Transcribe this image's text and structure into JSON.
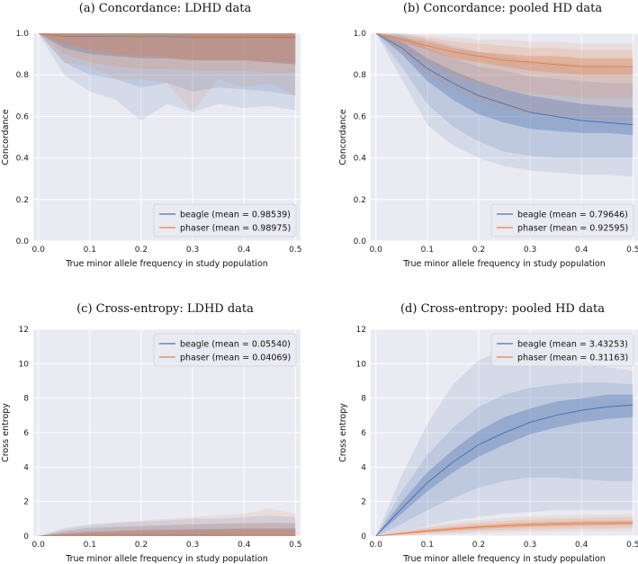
{
  "colors": {
    "beagle": "#4c72b0",
    "phaser": "#dd8452",
    "plot_bg": "#eaeaf2",
    "grid": "#ffffff"
  },
  "chart_data": [
    {
      "id": "a",
      "type": "line",
      "title": "(a) Concordance: LDHD data",
      "xlabel": "True minor allele frequency in study population",
      "ylabel": "Concordance",
      "xlim": [
        -0.01,
        0.51
      ],
      "ylim": [
        0.0,
        1.0
      ],
      "xticks": [
        "0.0",
        "0.1",
        "0.2",
        "0.3",
        "0.4",
        "0.5"
      ],
      "yticks": [
        "0.0",
        "0.2",
        "0.4",
        "0.6",
        "0.8",
        "1.0"
      ],
      "legend_position": "bottom-right",
      "x": [
        0.0,
        0.05,
        0.1,
        0.15,
        0.2,
        0.25,
        0.3,
        0.35,
        0.4,
        0.45,
        0.5
      ],
      "series": [
        {
          "name": "beagle",
          "legend": "beagle (mean = 0.98539)",
          "mean": [
            1.0,
            0.985,
            0.985,
            0.984,
            0.983,
            0.983,
            0.982,
            0.982,
            0.981,
            0.981,
            0.98
          ],
          "q1_low": [
            1.0,
            0.93,
            0.9,
            0.89,
            0.88,
            0.88,
            0.87,
            0.87,
            0.87,
            0.86,
            0.85
          ],
          "q1_high": [
            1.0,
            1.0,
            1.0,
            1.0,
            1.0,
            1.0,
            1.0,
            1.0,
            1.0,
            1.0,
            1.0
          ],
          "q2_low": [
            1.0,
            0.86,
            0.8,
            0.78,
            0.74,
            0.76,
            0.72,
            0.74,
            0.73,
            0.72,
            0.7
          ],
          "q2_high": [
            1.0,
            1.0,
            1.0,
            1.0,
            1.0,
            1.0,
            1.0,
            1.0,
            1.0,
            1.0,
            1.0
          ],
          "q3_low": [
            1.0,
            0.8,
            0.72,
            0.68,
            0.58,
            0.66,
            0.62,
            0.66,
            0.64,
            0.65,
            0.63
          ],
          "q3_high": [
            1.0,
            1.0,
            1.0,
            1.0,
            1.0,
            1.0,
            1.0,
            1.0,
            1.0,
            1.0,
            1.0
          ]
        },
        {
          "name": "phaser",
          "legend": "phaser (mean = 0.98975)",
          "mean": [
            1.0,
            0.99,
            0.99,
            0.989,
            0.989,
            0.989,
            0.988,
            0.988,
            0.988,
            0.988,
            0.987
          ],
          "q1_low": [
            1.0,
            0.95,
            0.92,
            0.9,
            0.89,
            0.88,
            0.87,
            0.87,
            0.87,
            0.86,
            0.86
          ],
          "q1_high": [
            1.0,
            1.0,
            1.0,
            1.0,
            1.0,
            1.0,
            1.0,
            1.0,
            1.0,
            1.0,
            1.0
          ],
          "q2_low": [
            1.0,
            0.9,
            0.86,
            0.84,
            0.83,
            0.83,
            0.82,
            0.82,
            0.82,
            0.81,
            0.81
          ],
          "q2_high": [
            1.0,
            1.0,
            1.0,
            1.0,
            1.0,
            1.0,
            1.0,
            1.0,
            1.0,
            1.0,
            1.0
          ],
          "q3_low": [
            1.0,
            0.86,
            0.84,
            0.78,
            0.78,
            0.76,
            0.62,
            0.78,
            0.74,
            0.76,
            0.7
          ],
          "q3_high": [
            1.0,
            1.0,
            1.0,
            1.0,
            1.0,
            1.0,
            1.0,
            1.0,
            1.0,
            1.0,
            1.0
          ]
        }
      ]
    },
    {
      "id": "b",
      "type": "line",
      "title": "(b) Concordance: pooled HD data",
      "xlabel": "True minor allele frequency in study population",
      "ylabel": "Concordance",
      "xlim": [
        -0.01,
        0.51
      ],
      "ylim": [
        0.0,
        1.0
      ],
      "xticks": [
        "0.0",
        "0.1",
        "0.2",
        "0.3",
        "0.4",
        "0.5"
      ],
      "yticks": [
        "0.0",
        "0.2",
        "0.4",
        "0.6",
        "0.8",
        "1.0"
      ],
      "legend_position": "bottom-right",
      "x": [
        0.0,
        0.05,
        0.1,
        0.15,
        0.2,
        0.25,
        0.3,
        0.35,
        0.4,
        0.45,
        0.5
      ],
      "series": [
        {
          "name": "beagle",
          "legend": "beagle (mean = 0.79646)",
          "mean": [
            1.0,
            0.93,
            0.83,
            0.76,
            0.7,
            0.66,
            0.62,
            0.6,
            0.58,
            0.57,
            0.56
          ],
          "q1_low": [
            1.0,
            0.9,
            0.77,
            0.68,
            0.61,
            0.57,
            0.54,
            0.53,
            0.52,
            0.52,
            0.51
          ],
          "q1_high": [
            1.0,
            0.96,
            0.88,
            0.82,
            0.77,
            0.73,
            0.7,
            0.68,
            0.66,
            0.65,
            0.64
          ],
          "q2_low": [
            1.0,
            0.84,
            0.66,
            0.55,
            0.48,
            0.43,
            0.41,
            0.4,
            0.4,
            0.4,
            0.4
          ],
          "q2_high": [
            1.0,
            0.99,
            0.93,
            0.88,
            0.84,
            0.82,
            0.79,
            0.78,
            0.77,
            0.76,
            0.76
          ],
          "q3_low": [
            1.0,
            0.78,
            0.56,
            0.46,
            0.4,
            0.36,
            0.34,
            0.33,
            0.32,
            0.32,
            0.31
          ],
          "q3_high": [
            1.0,
            1.0,
            0.97,
            0.94,
            0.91,
            0.89,
            0.87,
            0.86,
            0.85,
            0.85,
            0.84
          ]
        },
        {
          "name": "phaser",
          "legend": "phaser (mean = 0.92595)",
          "mean": [
            1.0,
            0.97,
            0.94,
            0.91,
            0.89,
            0.87,
            0.86,
            0.85,
            0.84,
            0.84,
            0.84
          ],
          "q1_low": [
            1.0,
            0.96,
            0.92,
            0.88,
            0.86,
            0.84,
            0.82,
            0.81,
            0.8,
            0.8,
            0.8
          ],
          "q1_high": [
            1.0,
            0.98,
            0.96,
            0.93,
            0.91,
            0.9,
            0.89,
            0.89,
            0.88,
            0.88,
            0.88
          ],
          "q2_low": [
            1.0,
            0.93,
            0.86,
            0.8,
            0.76,
            0.73,
            0.71,
            0.7,
            0.69,
            0.69,
            0.69
          ],
          "q2_high": [
            1.0,
            0.99,
            0.98,
            0.96,
            0.95,
            0.94,
            0.93,
            0.93,
            0.92,
            0.92,
            0.92
          ],
          "q3_low": [
            1.0,
            0.9,
            0.8,
            0.73,
            0.67,
            0.63,
            0.61,
            0.6,
            0.59,
            0.58,
            0.58
          ],
          "q3_high": [
            1.0,
            1.0,
            0.99,
            0.98,
            0.97,
            0.97,
            0.96,
            0.96,
            0.95,
            0.95,
            0.95
          ]
        }
      ]
    },
    {
      "id": "c",
      "type": "line",
      "title": "(c) Cross-entropy: LDHD data",
      "xlabel": "True minor allele frequency in study population",
      "ylabel": "Cross entropy",
      "xlim": [
        -0.01,
        0.51
      ],
      "ylim": [
        0,
        12
      ],
      "xticks": [
        "0.0",
        "0.1",
        "0.2",
        "0.3",
        "0.4",
        "0.5"
      ],
      "yticks": [
        "0",
        "2",
        "4",
        "6",
        "8",
        "10",
        "12"
      ],
      "legend_position": "top-right",
      "x": [
        0.0,
        0.05,
        0.1,
        0.15,
        0.2,
        0.25,
        0.3,
        0.35,
        0.4,
        0.45,
        0.5
      ],
      "series": [
        {
          "name": "beagle",
          "legend": "beagle (mean = 0.05540)",
          "mean": [
            0.0,
            0.03,
            0.04,
            0.05,
            0.05,
            0.06,
            0.06,
            0.06,
            0.06,
            0.06,
            0.06
          ],
          "q1_low": [
            0,
            0,
            0,
            0,
            0,
            0,
            0,
            0,
            0,
            0,
            0
          ],
          "q1_high": [
            0.0,
            0.15,
            0.25,
            0.3,
            0.35,
            0.38,
            0.4,
            0.42,
            0.45,
            0.45,
            0.45
          ],
          "q2_low": [
            0,
            0,
            0,
            0,
            0,
            0,
            0,
            0,
            0,
            0,
            0
          ],
          "q2_high": [
            0.0,
            0.3,
            0.5,
            0.55,
            0.6,
            0.65,
            0.7,
            0.72,
            0.75,
            0.78,
            0.78
          ],
          "q3_low": [
            0,
            0,
            0,
            0,
            0,
            0,
            0,
            0,
            0,
            0,
            0
          ],
          "q3_high": [
            0.0,
            0.45,
            0.7,
            0.8,
            0.85,
            0.9,
            1.0,
            1.0,
            1.1,
            1.2,
            1.1
          ]
        },
        {
          "name": "phaser",
          "legend": "phaser (mean = 0.04069)",
          "mean": [
            0.0,
            0.02,
            0.03,
            0.04,
            0.04,
            0.04,
            0.04,
            0.04,
            0.05,
            0.05,
            0.05
          ],
          "q1_low": [
            0,
            0,
            0,
            0,
            0,
            0,
            0,
            0,
            0,
            0,
            0
          ],
          "q1_high": [
            0.0,
            0.12,
            0.2,
            0.25,
            0.3,
            0.32,
            0.35,
            0.37,
            0.4,
            0.4,
            0.4
          ],
          "q2_low": [
            0,
            0,
            0,
            0,
            0,
            0,
            0,
            0,
            0,
            0,
            0
          ],
          "q2_high": [
            0.0,
            0.25,
            0.4,
            0.5,
            0.55,
            0.6,
            0.65,
            0.7,
            0.75,
            0.75,
            0.72
          ],
          "q3_low": [
            0,
            0,
            0,
            0,
            0,
            0,
            0,
            0,
            0,
            0,
            0
          ],
          "q3_high": [
            0.0,
            0.4,
            0.6,
            0.75,
            0.9,
            1.0,
            1.1,
            1.2,
            1.3,
            1.6,
            1.3
          ]
        }
      ]
    },
    {
      "id": "d",
      "type": "line",
      "title": "(d) Cross-entropy: pooled HD data",
      "xlabel": "True minor allele frequency in study population",
      "ylabel": "Cross entropy",
      "xlim": [
        -0.01,
        0.51
      ],
      "ylim": [
        0,
        12
      ],
      "xticks": [
        "0.0",
        "0.1",
        "0.2",
        "0.3",
        "0.4",
        "0.5"
      ],
      "yticks": [
        "0",
        "2",
        "4",
        "6",
        "8",
        "10",
        "12"
      ],
      "legend_position": "top-right",
      "x": [
        0.0,
        0.05,
        0.1,
        0.15,
        0.2,
        0.25,
        0.3,
        0.35,
        0.4,
        0.45,
        0.5
      ],
      "series": [
        {
          "name": "beagle",
          "legend": "beagle (mean = 3.43253)",
          "mean": [
            0.0,
            1.6,
            3.1,
            4.3,
            5.3,
            6.0,
            6.6,
            7.0,
            7.3,
            7.5,
            7.6
          ],
          "q1_low": [
            0.0,
            1.3,
            2.6,
            3.7,
            4.6,
            5.3,
            5.9,
            6.3,
            6.6,
            6.8,
            6.9
          ],
          "q1_high": [
            0.0,
            2.0,
            3.7,
            5.0,
            6.1,
            6.9,
            7.4,
            7.8,
            8.0,
            8.2,
            8.2
          ],
          "q2_low": [
            0.0,
            0.7,
            1.5,
            2.2,
            2.8,
            3.2,
            3.4,
            3.4,
            3.3,
            3.2,
            3.2
          ],
          "q2_high": [
            0.0,
            2.6,
            4.7,
            6.3,
            7.5,
            8.2,
            8.6,
            8.8,
            8.9,
            8.9,
            8.8
          ],
          "q3_low": [
            0.0,
            0.3,
            0.6,
            0.9,
            1.1,
            1.3,
            1.4,
            1.5,
            1.5,
            1.5,
            1.5
          ],
          "q3_high": [
            0.0,
            3.5,
            6.5,
            8.8,
            10.2,
            10.8,
            10.9,
            10.6,
            10.2,
            9.8,
            9.6
          ]
        },
        {
          "name": "phaser",
          "legend": "phaser (mean = 0.31163)",
          "mean": [
            0.0,
            0.15,
            0.3,
            0.42,
            0.52,
            0.6,
            0.66,
            0.7,
            0.73,
            0.75,
            0.76
          ],
          "q1_low": [
            0.0,
            0.1,
            0.22,
            0.32,
            0.41,
            0.48,
            0.53,
            0.57,
            0.6,
            0.62,
            0.63
          ],
          "q1_high": [
            0.0,
            0.2,
            0.38,
            0.52,
            0.63,
            0.72,
            0.79,
            0.84,
            0.87,
            0.89,
            0.9
          ],
          "q2_low": [
            0.0,
            0.05,
            0.14,
            0.22,
            0.29,
            0.35,
            0.39,
            0.42,
            0.44,
            0.46,
            0.47
          ],
          "q2_high": [
            0.0,
            0.26,
            0.48,
            0.65,
            0.78,
            0.88,
            0.96,
            1.01,
            1.05,
            1.07,
            1.08
          ],
          "q3_low": [
            0.0,
            0.02,
            0.08,
            0.13,
            0.18,
            0.22,
            0.25,
            0.27,
            0.29,
            0.3,
            0.3
          ],
          "q3_high": [
            0.0,
            0.32,
            0.58,
            0.78,
            0.94,
            1.06,
            1.15,
            1.21,
            1.25,
            1.27,
            1.28
          ]
        }
      ]
    }
  ]
}
